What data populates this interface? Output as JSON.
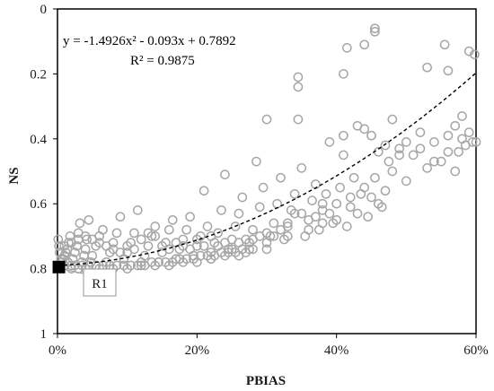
{
  "chart_data": {
    "type": "scatter",
    "title": "",
    "xlabel": "PBIAS",
    "ylabel": "NS",
    "xlim": [
      0,
      0.6
    ],
    "ylim": [
      1,
      0
    ],
    "y_axis_inverted": true,
    "grid": false,
    "x_ticks": [
      {
        "value": 0,
        "label": "0%"
      },
      {
        "value": 0.2,
        "label": "20%"
      },
      {
        "value": 0.4,
        "label": "40%"
      },
      {
        "value": 0.6,
        "label": "60%"
      }
    ],
    "y_ticks": [
      {
        "value": 0,
        "label": "0"
      },
      {
        "value": 0.2,
        "label": "0.2"
      },
      {
        "value": 0.4,
        "label": "0.4"
      },
      {
        "value": 0.6,
        "label": "0.6"
      },
      {
        "value": 0.8,
        "label": "0.8"
      },
      {
        "value": 1,
        "label": "1"
      }
    ],
    "marker_color": "#a6a6a6",
    "series": [
      {
        "marker": "open-circle",
        "points": [
          [
            0.004,
            0.79
          ],
          [
            0.006,
            0.78
          ],
          [
            0.008,
            0.77
          ],
          [
            0.01,
            0.76
          ],
          [
            0.012,
            0.75
          ],
          [
            0.014,
            0.74
          ],
          [
            0.016,
            0.72
          ],
          [
            0.018,
            0.7
          ],
          [
            0.02,
            0.79
          ],
          [
            0.022,
            0.77
          ],
          [
            0.025,
            0.75
          ],
          [
            0.028,
            0.73
          ],
          [
            0.03,
            0.69
          ],
          [
            0.032,
            0.66
          ],
          [
            0.035,
            0.78
          ],
          [
            0.038,
            0.76
          ],
          [
            0.04,
            0.74
          ],
          [
            0.042,
            0.71
          ],
          [
            0.045,
            0.65
          ],
          [
            0.048,
            0.78
          ],
          [
            0.05,
            0.76
          ],
          [
            0.055,
            0.73
          ],
          [
            0.06,
            0.7
          ],
          [
            0.065,
            0.68
          ],
          [
            0.07,
            0.78
          ],
          [
            0.075,
            0.75
          ],
          [
            0.08,
            0.72
          ],
          [
            0.085,
            0.69
          ],
          [
            0.09,
            0.64
          ],
          [
            0.095,
            0.77
          ],
          [
            0.1,
            0.75
          ],
          [
            0.105,
            0.72
          ],
          [
            0.11,
            0.69
          ],
          [
            0.115,
            0.62
          ],
          [
            0.12,
            0.78
          ],
          [
            0.125,
            0.76
          ],
          [
            0.13,
            0.73
          ],
          [
            0.135,
            0.7
          ],
          [
            0.14,
            0.67
          ],
          [
            0.145,
            0.78
          ],
          [
            0.15,
            0.75
          ],
          [
            0.155,
            0.72
          ],
          [
            0.16,
            0.68
          ],
          [
            0.165,
            0.65
          ],
          [
            0.17,
            0.77
          ],
          [
            0.175,
            0.74
          ],
          [
            0.18,
            0.71
          ],
          [
            0.185,
            0.68
          ],
          [
            0.19,
            0.64
          ],
          [
            0.195,
            0.76
          ],
          [
            0.2,
            0.73
          ],
          [
            0.205,
            0.7
          ],
          [
            0.21,
            0.56
          ],
          [
            0.215,
            0.67
          ],
          [
            0.22,
            0.75
          ],
          [
            0.225,
            0.72
          ],
          [
            0.23,
            0.69
          ],
          [
            0.235,
            0.62
          ],
          [
            0.24,
            0.51
          ],
          [
            0.245,
            0.74
          ],
          [
            0.25,
            0.71
          ],
          [
            0.255,
            0.67
          ],
          [
            0.26,
            0.63
          ],
          [
            0.265,
            0.58
          ],
          [
            0.27,
            0.75
          ],
          [
            0.275,
            0.72
          ],
          [
            0.28,
            0.68
          ],
          [
            0.285,
            0.47
          ],
          [
            0.29,
            0.61
          ],
          [
            0.295,
            0.55
          ],
          [
            0.3,
            0.74
          ],
          [
            0.305,
            0.7
          ],
          [
            0.31,
            0.66
          ],
          [
            0.315,
            0.6
          ],
          [
            0.32,
            0.52
          ],
          [
            0.325,
            0.71
          ],
          [
            0.33,
            0.67
          ],
          [
            0.335,
            0.62
          ],
          [
            0.34,
            0.57
          ],
          [
            0.345,
            0.34
          ],
          [
            0.35,
            0.49
          ],
          [
            0.355,
            0.7
          ],
          [
            0.36,
            0.65
          ],
          [
            0.365,
            0.59
          ],
          [
            0.37,
            0.54
          ],
          [
            0.375,
            0.68
          ],
          [
            0.38,
            0.62
          ],
          [
            0.385,
            0.57
          ],
          [
            0.39,
            0.41
          ],
          [
            0.395,
            0.66
          ],
          [
            0.4,
            0.6
          ],
          [
            0.405,
            0.55
          ],
          [
            0.41,
            0.39
          ],
          [
            0.415,
            0.67
          ],
          [
            0.42,
            0.61
          ],
          [
            0.425,
            0.52
          ],
          [
            0.43,
            0.63
          ],
          [
            0.435,
            0.57
          ],
          [
            0.44,
            0.37
          ],
          [
            0.445,
            0.64
          ],
          [
            0.45,
            0.58
          ],
          [
            0.455,
            0.52
          ],
          [
            0.46,
            0.44
          ],
          [
            0.465,
            0.61
          ],
          [
            0.47,
            0.56
          ],
          [
            0.475,
            0.47
          ],
          [
            0.48,
            0.34
          ],
          [
            0.49,
            0.43
          ],
          [
            0.5,
            0.53
          ],
          [
            0.51,
            0.45
          ],
          [
            0.52,
            0.38
          ],
          [
            0.53,
            0.49
          ],
          [
            0.54,
            0.41
          ],
          [
            0.55,
            0.47
          ],
          [
            0.56,
            0.39
          ],
          [
            0.57,
            0.5
          ],
          [
            0.575,
            0.44
          ],
          [
            0.58,
            0.33
          ],
          [
            0.585,
            0.42
          ],
          [
            0.59,
            0.38
          ],
          [
            0.595,
            0.41
          ],
          [
            0.598,
            0.14
          ],
          [
            0.59,
            0.13
          ],
          [
            0.56,
            0.19
          ],
          [
            0.555,
            0.11
          ],
          [
            0.53,
            0.18
          ],
          [
            0.455,
            0.06
          ],
          [
            0.455,
            0.07
          ],
          [
            0.44,
            0.11
          ],
          [
            0.415,
            0.12
          ],
          [
            0.41,
            0.2
          ],
          [
            0.345,
            0.21
          ],
          [
            0.345,
            0.24
          ],
          [
            0.3,
            0.34
          ],
          [
            0.43,
            0.36
          ],
          [
            0.41,
            0.45
          ],
          [
            0.45,
            0.39
          ],
          [
            0.47,
            0.42
          ],
          [
            0.49,
            0.45
          ],
          [
            0.38,
            0.6
          ],
          [
            0.35,
            0.63
          ],
          [
            0.33,
            0.7
          ],
          [
            0.3,
            0.72
          ],
          [
            0.28,
            0.74
          ],
          [
            0.26,
            0.76
          ],
          [
            0.24,
            0.76
          ],
          [
            0.22,
            0.77
          ],
          [
            0.2,
            0.78
          ],
          [
            0.18,
            0.78
          ],
          [
            0.16,
            0.79
          ],
          [
            0.14,
            0.79
          ],
          [
            0.12,
            0.79
          ],
          [
            0.1,
            0.8
          ],
          [
            0.08,
            0.8
          ],
          [
            0.06,
            0.8
          ],
          [
            0.04,
            0.8
          ],
          [
            0.03,
            0.8
          ],
          [
            0.02,
            0.8
          ],
          [
            0.01,
            0.79
          ],
          [
            0.005,
            0.77
          ],
          [
            0.003,
            0.75
          ],
          [
            0.002,
            0.73
          ],
          [
            0.001,
            0.71
          ],
          [
            0.015,
            0.78
          ],
          [
            0.025,
            0.79
          ],
          [
            0.035,
            0.79
          ],
          [
            0.045,
            0.79
          ],
          [
            0.055,
            0.79
          ],
          [
            0.065,
            0.79
          ],
          [
            0.075,
            0.79
          ],
          [
            0.085,
            0.79
          ],
          [
            0.095,
            0.79
          ],
          [
            0.105,
            0.79
          ],
          [
            0.115,
            0.79
          ],
          [
            0.125,
            0.79
          ],
          [
            0.135,
            0.78
          ],
          [
            0.145,
            0.78
          ],
          [
            0.155,
            0.78
          ],
          [
            0.165,
            0.78
          ],
          [
            0.175,
            0.77
          ],
          [
            0.185,
            0.77
          ],
          [
            0.195,
            0.77
          ],
          [
            0.205,
            0.76
          ],
          [
            0.215,
            0.76
          ],
          [
            0.225,
            0.76
          ],
          [
            0.235,
            0.75
          ],
          [
            0.245,
            0.75
          ],
          [
            0.255,
            0.75
          ],
          [
            0.265,
            0.74
          ],
          [
            0.275,
            0.74
          ],
          [
            0.01,
            0.73
          ],
          [
            0.02,
            0.72
          ],
          [
            0.03,
            0.71
          ],
          [
            0.04,
            0.7
          ],
          [
            0.05,
            0.71
          ],
          [
            0.06,
            0.72
          ],
          [
            0.07,
            0.73
          ],
          [
            0.08,
            0.74
          ],
          [
            0.09,
            0.75
          ],
          [
            0.1,
            0.73
          ],
          [
            0.11,
            0.74
          ],
          [
            0.12,
            0.71
          ],
          [
            0.13,
            0.69
          ],
          [
            0.14,
            0.7
          ],
          [
            0.15,
            0.73
          ],
          [
            0.16,
            0.74
          ],
          [
            0.17,
            0.72
          ],
          [
            0.18,
            0.73
          ],
          [
            0.19,
            0.74
          ],
          [
            0.2,
            0.71
          ],
          [
            0.21,
            0.73
          ],
          [
            0.22,
            0.7
          ],
          [
            0.23,
            0.73
          ],
          [
            0.24,
            0.72
          ],
          [
            0.25,
            0.74
          ],
          [
            0.26,
            0.72
          ],
          [
            0.27,
            0.71
          ],
          [
            0.28,
            0.71
          ],
          [
            0.29,
            0.7
          ],
          [
            0.3,
            0.69
          ],
          [
            0.31,
            0.7
          ],
          [
            0.32,
            0.68
          ],
          [
            0.33,
            0.66
          ],
          [
            0.34,
            0.63
          ],
          [
            0.36,
            0.68
          ],
          [
            0.37,
            0.64
          ],
          [
            0.38,
            0.66
          ],
          [
            0.39,
            0.63
          ],
          [
            0.4,
            0.65
          ],
          [
            0.42,
            0.58
          ],
          [
            0.44,
            0.55
          ],
          [
            0.46,
            0.6
          ],
          [
            0.48,
            0.5
          ],
          [
            0.5,
            0.41
          ],
          [
            0.52,
            0.43
          ],
          [
            0.54,
            0.47
          ],
          [
            0.56,
            0.44
          ],
          [
            0.58,
            0.4
          ],
          [
            0.6,
            0.41
          ],
          [
            0.57,
            0.36
          ]
        ]
      }
    ],
    "highlight_point": {
      "x": 0.002,
      "y": 0.795,
      "marker": "filled-square",
      "color": "#000000",
      "label": "R1"
    },
    "trendline": {
      "style": "dashed",
      "color": "#000000",
      "coefficients": {
        "a": -1.4926,
        "b": -0.093,
        "c": 0.7892
      },
      "x_range": [
        0,
        0.6
      ],
      "equation_text": "y = -1.4926x² - 0.093x + 0.7892",
      "r2_text": "R² = 0.9875"
    }
  }
}
